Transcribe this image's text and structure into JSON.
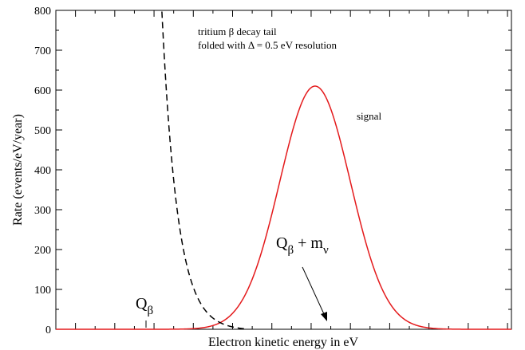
{
  "chart_data": {
    "type": "line",
    "xlabel": "Electron kinetic energy in eV",
    "ylabel": "Rate (events/eV/year)",
    "ylim": [
      0,
      800
    ],
    "yticks": [
      0,
      100,
      200,
      300,
      400,
      500,
      600,
      700,
      800
    ],
    "grid": false,
    "series": [
      {
        "name": "signal",
        "color": "#e41a1c",
        "style": "solid",
        "peak_rate": 610,
        "x": [
          -6.6,
          -3.0,
          -2.0,
          -1.5,
          -1.0,
          -0.5,
          0.0,
          0.5,
          1.0,
          1.5,
          2.0,
          3.0,
          5.0
        ],
        "y": [
          0,
          2,
          28,
          80,
          260,
          470,
          610,
          470,
          260,
          80,
          28,
          2,
          0
        ]
      },
      {
        "name": "tritium β decay tail",
        "color": "#000000",
        "style": "dashed",
        "x": [
          -3.9,
          -3.8,
          -3.6,
          -3.4,
          -3.2,
          -3.0,
          -2.8,
          -2.6,
          -2.4,
          -2.2,
          -2.0,
          -1.8
        ],
        "y": [
          800,
          600,
          360,
          215,
          130,
          78,
          47,
          28,
          17,
          10,
          3,
          0
        ]
      }
    ],
    "annotations": {
      "tail_line1": "tritium β decay tail",
      "tail_line2": "folded with Δ = 0.5 eV resolution",
      "signal": "signal",
      "q_beta_main": "Q",
      "q_beta_sub": "β",
      "q_m_main": "Q",
      "q_m_sub1": "β",
      "q_m_plus": " + m",
      "q_m_sub2": "ν"
    }
  }
}
